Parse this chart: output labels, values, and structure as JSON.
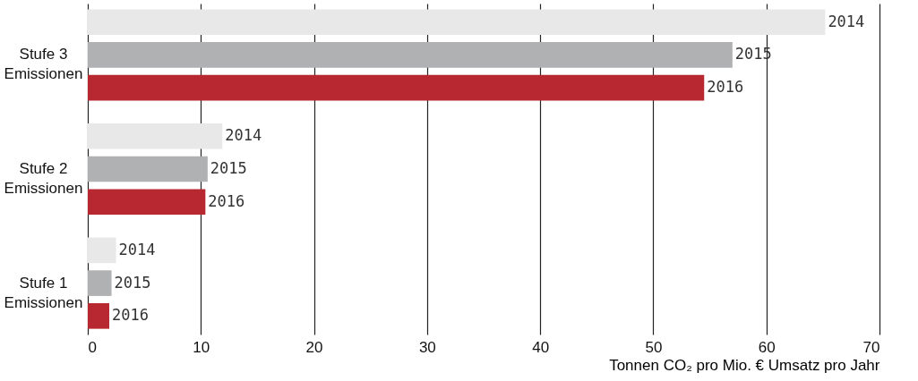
{
  "chart_data": {
    "type": "bar",
    "orientation": "horizontal",
    "categories": [
      "Stufe 3\nEmissionen",
      "Stufe 2\nEmissionen",
      "Stufe 1\nEmissionen"
    ],
    "series": [
      {
        "name": "2014",
        "color": "#e8e8e8",
        "values": [
          65.2,
          11.9,
          2.5
        ]
      },
      {
        "name": "2015",
        "color": "#b0b1b3",
        "values": [
          57.0,
          10.6,
          2.1
        ]
      },
      {
        "name": "2016",
        "color": "#b82830",
        "values": [
          54.5,
          10.4,
          1.9
        ]
      }
    ],
    "xlabel": "Tonnen CO₂ pro Mio. € Umsatz pro Jahr",
    "xlim": [
      0,
      70
    ],
    "xticks": [
      0,
      10,
      20,
      30,
      40,
      50,
      60,
      70
    ],
    "grid": "x"
  }
}
